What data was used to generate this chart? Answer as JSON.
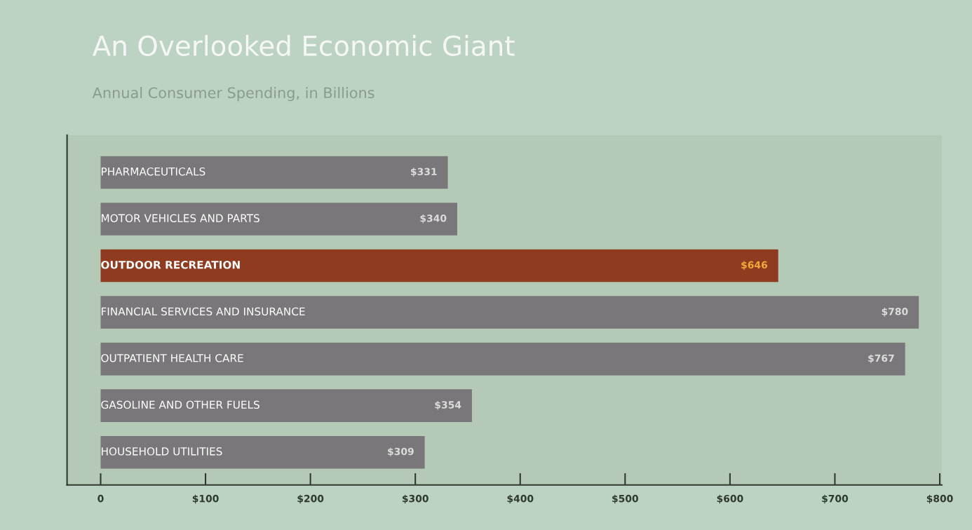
{
  "chart_data": {
    "type": "bar",
    "orientation": "horizontal",
    "title": "An Overlooked Economic Giant",
    "subtitle": "Annual Consumer Spending, in Billions",
    "categories": [
      "PHARMACEUTICALS",
      "MOTOR VEHICLES AND PARTS",
      "OUTDOOR RECREATION",
      "FINANCIAL SERVICES AND INSURANCE",
      "OUTPATIENT HEALTH CARE",
      "GASOLINE AND OTHER FUELS",
      "HOUSEHOLD UTILITIES"
    ],
    "values": [
      331,
      340,
      646,
      780,
      767,
      354,
      309
    ],
    "colors": [
      "#7a777a",
      "#7a777a",
      "#8e3b20",
      "#7a777a",
      "#7a777a",
      "#7a777a",
      "#7a777a"
    ],
    "value_labels": [
      "$331",
      "$340",
      "$646",
      "$780",
      "$767",
      "$354",
      "$309"
    ],
    "xlim": [
      -32,
      802
    ],
    "xticks": [
      0,
      {
        "value": 100,
        "label": "$100"
      },
      {
        "value": 200,
        "label": "$200"
      },
      {
        "value": 300,
        "label": "$300"
      },
      {
        "value": 400,
        "label": "$400"
      },
      {
        "value": 500,
        "label": "$500"
      },
      {
        "value": 600,
        "label": "$600"
      },
      {
        "value": 700,
        "label": "$700"
      },
      {
        "value": 800,
        "label": "$800"
      }
    ],
    "grid": false
  }
}
